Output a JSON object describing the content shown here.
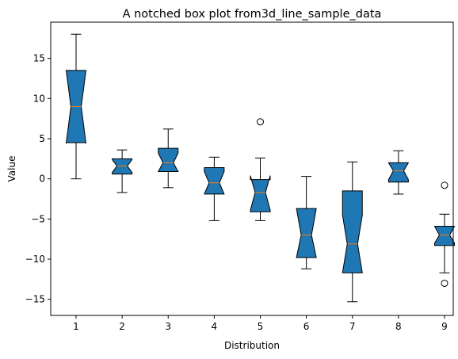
{
  "chart_data": {
    "type": "boxplot",
    "variant": "notched",
    "title": "A notched box plot from3d_line_sample_data",
    "xlabel": "Distribution",
    "ylabel": "Value",
    "ylim": [
      -17,
      19.5
    ],
    "yticks": [
      -15,
      -10,
      -5,
      0,
      5,
      10,
      15
    ],
    "categories": [
      "1",
      "2",
      "3",
      "4",
      "5",
      "6",
      "7",
      "8",
      "9"
    ],
    "box_color": "#1f77b4",
    "median_color": "#ff7f0e",
    "boxes": [
      {
        "label": "1",
        "whislo": 0.0,
        "q1": 4.5,
        "med": 9.0,
        "q3": 13.5,
        "whishi": 18.0,
        "notch_lo": 4.4,
        "notch_hi": 13.5,
        "fliers": []
      },
      {
        "label": "2",
        "whislo": -1.7,
        "q1": 0.6,
        "med": 1.6,
        "q3": 2.5,
        "whishi": 3.6,
        "notch_lo": 0.8,
        "notch_hi": 2.4,
        "fliers": []
      },
      {
        "label": "3",
        "whislo": -1.1,
        "q1": 0.9,
        "med": 2.0,
        "q3": 3.8,
        "whishi": 6.2,
        "notch_lo": 0.9,
        "notch_hi": 3.2,
        "fliers": []
      },
      {
        "label": "4",
        "whislo": -5.2,
        "q1": -1.9,
        "med": -0.5,
        "q3": 1.4,
        "whishi": 2.7,
        "notch_lo": -1.9,
        "notch_hi": 0.9,
        "fliers": []
      },
      {
        "label": "5",
        "whislo": -5.2,
        "q1": -4.1,
        "med": -1.7,
        "q3": -0.1,
        "whishi": 2.6,
        "notch_lo": -3.9,
        "notch_hi": 0.4,
        "fliers": [
          7.1
        ]
      },
      {
        "label": "6",
        "whislo": -11.2,
        "q1": -9.8,
        "med": -7.0,
        "q3": -3.7,
        "whishi": 0.3,
        "notch_lo": -9.8,
        "notch_hi": -3.7,
        "fliers": []
      },
      {
        "label": "7",
        "whislo": -15.3,
        "q1": -11.7,
        "med": -8.1,
        "q3": -1.5,
        "whishi": 2.1,
        "notch_lo": -11.7,
        "notch_hi": -4.5,
        "fliers": []
      },
      {
        "label": "8",
        "whislo": -1.9,
        "q1": -0.4,
        "med": 1.0,
        "q3": 2.0,
        "whishi": 3.5,
        "notch_lo": -0.1,
        "notch_hi": 2.0,
        "fliers": []
      },
      {
        "label": "9",
        "whislo": -11.7,
        "q1": -8.3,
        "med": -7.0,
        "q3": -5.9,
        "whishi": -4.4,
        "notch_lo": -8.0,
        "notch_hi": -5.9,
        "fliers": [
          -0.8,
          -13.0
        ]
      }
    ]
  }
}
